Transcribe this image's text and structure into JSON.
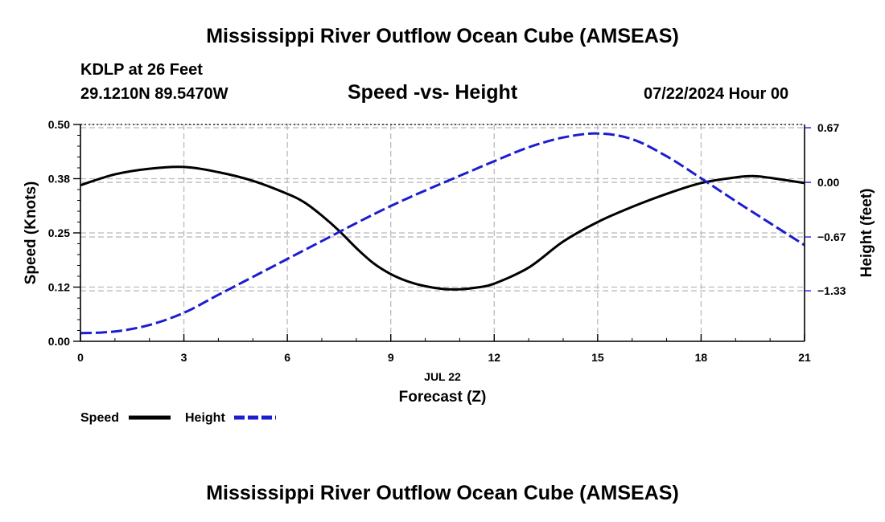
{
  "page": {
    "title_top": "Mississippi River Outflow Ocean Cube (AMSEAS)",
    "title_bottom": "Mississippi River Outflow Ocean Cube (AMSEAS)",
    "station": "KDLP at 26 Feet",
    "coordinates": "29.1210N  89.5470W",
    "chart_title": "Speed -vs- Height",
    "datetime": "07/22/2024 Hour 00"
  },
  "chart_data": {
    "type": "line",
    "title": "Speed -vs- Height",
    "xlabel": "Forecast (Z)",
    "xlabel_date": "JUL 22",
    "ylabel": "Speed (Knots)",
    "y2label": "Height (feet)",
    "xlim": [
      0,
      21
    ],
    "ylim": [
      0,
      0.5
    ],
    "y2lim": [
      -1.95,
      0.71
    ],
    "x_ticks": [
      0,
      3,
      6,
      9,
      12,
      15,
      18,
      21
    ],
    "x_tick_labels": [
      "0",
      "3",
      "6",
      "9",
      "12",
      "15",
      "18",
      "21"
    ],
    "y_ticks": [
      0,
      0.125,
      0.25,
      0.375,
      0.5
    ],
    "y_tick_labels": [
      "0.00",
      "0.12",
      "0.25",
      "0.38",
      "0.50"
    ],
    "y2_ticks": [
      0.67,
      0,
      -0.67,
      -1.33
    ],
    "y2_tick_labels": [
      "0.67",
      "0.00",
      "−0.67",
      "−1.33"
    ],
    "grid": true,
    "legend_position": "bottom-left",
    "series": [
      {
        "name": "Speed",
        "axis": "left",
        "color": "#000000",
        "style": "solid",
        "x": [
          0,
          1,
          2,
          3,
          4,
          5,
          6,
          6.5,
          7,
          7.5,
          8,
          8.5,
          9,
          9.5,
          10,
          10.5,
          11,
          11.5,
          12,
          13,
          14,
          15,
          16,
          17,
          18,
          19,
          19.5,
          20,
          21
        ],
        "values": [
          0.36,
          0.385,
          0.398,
          0.402,
          0.39,
          0.37,
          0.34,
          0.32,
          0.29,
          0.255,
          0.215,
          0.18,
          0.155,
          0.138,
          0.127,
          0.121,
          0.12,
          0.124,
          0.133,
          0.17,
          0.23,
          0.275,
          0.31,
          0.34,
          0.365,
          0.378,
          0.381,
          0.377,
          0.365
        ]
      },
      {
        "name": "Height",
        "axis": "right",
        "color": "#1c1cd0",
        "style": "dashed",
        "x": [
          0,
          1,
          2,
          3,
          4,
          5,
          6,
          7,
          8,
          9,
          10,
          11,
          12,
          13,
          14,
          15,
          16,
          17,
          18,
          19,
          20,
          21
        ],
        "values": [
          -1.85,
          -1.83,
          -1.75,
          -1.6,
          -1.38,
          -1.16,
          -0.94,
          -0.72,
          -0.5,
          -0.29,
          -0.1,
          0.08,
          0.26,
          0.43,
          0.55,
          0.6,
          0.53,
          0.32,
          0.05,
          -0.23,
          -0.5,
          -0.77
        ]
      }
    ]
  }
}
